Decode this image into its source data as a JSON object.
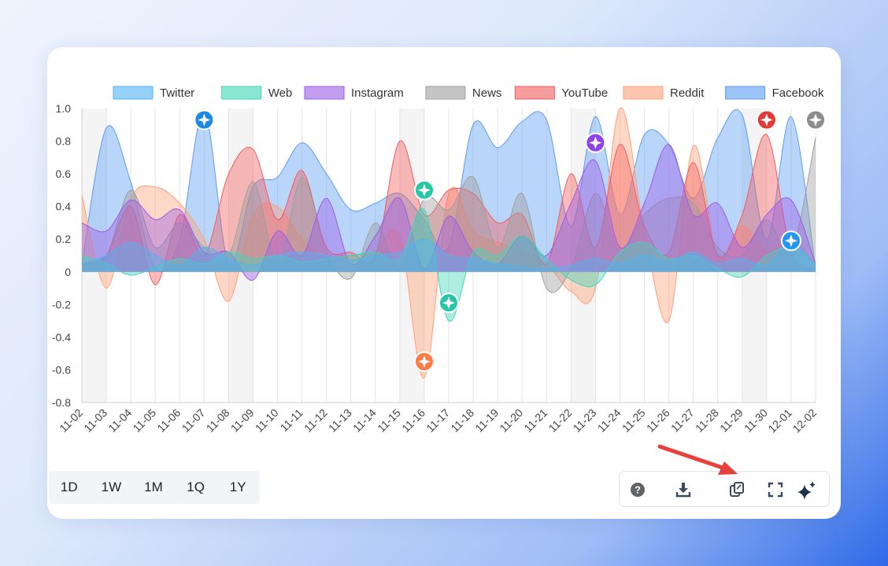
{
  "range_buttons": [
    "1D",
    "1W",
    "1M",
    "1Q",
    "1Y"
  ],
  "toolbar": {
    "help_icon": "help-icon",
    "download_icon": "download-icon",
    "copy_icon": "copy-icon",
    "fullscreen_icon": "fullscreen-icon",
    "ai_icon": "sparkles-icon"
  },
  "annotation_arrow_color": "#e8403a",
  "chart_data": {
    "type": "area",
    "categories": [
      "11-02",
      "11-03",
      "11-04",
      "11-05",
      "11-06",
      "11-07",
      "11-08",
      "11-09",
      "11-10",
      "11-11",
      "11-12",
      "11-13",
      "11-14",
      "11-15",
      "11-16",
      "11-17",
      "11-18",
      "11-19",
      "11-20",
      "11-21",
      "11-22",
      "11-23",
      "11-24",
      "11-25",
      "11-26",
      "11-27",
      "11-28",
      "11-29",
      "11-30",
      "12-01",
      "12-02"
    ],
    "ylim": [
      -0.8,
      1.0
    ],
    "yticks": [
      1.0,
      0.8,
      0.6,
      0.4,
      0.2,
      0,
      -0.2,
      -0.4,
      -0.6,
      -0.8
    ],
    "grid": true,
    "legend_position": "top",
    "weekend_bands": [
      [
        "11-02",
        "11-03"
      ],
      [
        "11-08",
        "11-09"
      ],
      [
        "11-15",
        "11-16"
      ],
      [
        "11-22",
        "11-23"
      ],
      [
        "11-29",
        "11-30"
      ]
    ],
    "series": [
      {
        "name": "Twitter",
        "color": "#4fb3f6",
        "values": [
          0.05,
          0.1,
          0.18,
          0.1,
          0.04,
          0.15,
          0.08,
          0.04,
          0.1,
          0.12,
          0.1,
          0.07,
          0.1,
          0.12,
          0.2,
          0.1,
          0.08,
          0.05,
          0.03,
          0.02,
          0.04,
          0.08,
          0.05,
          0.1,
          0.06,
          0.12,
          0.05,
          0.08,
          0.04,
          0.18,
          0.04
        ]
      },
      {
        "name": "Web",
        "color": "#3fd6b8",
        "values": [
          0.1,
          0.05,
          -0.02,
          0.03,
          0.08,
          0.05,
          0.12,
          0.08,
          0.1,
          0.06,
          0.08,
          0.1,
          0.12,
          0.08,
          0.38,
          -0.3,
          0.12,
          0.1,
          0.22,
          0.08,
          -0.05,
          -0.08,
          0.12,
          0.18,
          0.08,
          0.1,
          0.02,
          -0.03,
          0.1,
          0.15,
          0.05
        ]
      },
      {
        "name": "Instagram",
        "color": "#9b5de5",
        "values": [
          0.3,
          0.25,
          0.44,
          0.32,
          0.38,
          0.12,
          0.12,
          -0.05,
          0.25,
          0.1,
          0.45,
          0.05,
          0.22,
          0.45,
          0.02,
          0.34,
          0.12,
          0.05,
          0.22,
          0.1,
          0.42,
          0.68,
          0.15,
          0.42,
          0.78,
          0.35,
          0.42,
          0.15,
          0.35,
          0.44,
          0.05
        ]
      },
      {
        "name": "News",
        "color": "#9e9e9e",
        "values": [
          0.05,
          0.1,
          0.5,
          0.15,
          0.3,
          0.15,
          0.1,
          0.55,
          0.05,
          0.58,
          0.12,
          -0.04,
          0.3,
          0.02,
          0.45,
          0.38,
          0.58,
          0.15,
          0.48,
          -0.1,
          0.02,
          0.48,
          0.12,
          0.35,
          0.45,
          0.42,
          0.15,
          0.1,
          0.32,
          0.12,
          0.82
        ]
      },
      {
        "name": "YouTube",
        "color": "#f25c5c",
        "values": [
          0.05,
          0.1,
          0.4,
          -0.08,
          0.35,
          0.1,
          0.6,
          0.75,
          0.32,
          0.62,
          0.15,
          0.12,
          0.1,
          0.8,
          0.35,
          0.5,
          0.48,
          0.3,
          0.35,
          0.05,
          0.6,
          0.15,
          0.78,
          0.28,
          0.12,
          0.67,
          0.1,
          0.35,
          0.84,
          0.12,
          0.02
        ]
      },
      {
        "name": "Reddit",
        "color": "#ffa07a",
        "values": [
          0.47,
          -0.1,
          0.45,
          0.52,
          0.42,
          0.2,
          -0.18,
          0.35,
          0.4,
          0.2,
          0.08,
          0.1,
          0.12,
          0.22,
          -0.65,
          0.48,
          0.25,
          0.18,
          0.12,
          0.05,
          -0.12,
          -0.1,
          1.0,
          0.25,
          -0.3,
          0.77,
          0.1,
          0.28,
          0.12,
          0.2,
          0.05
        ]
      },
      {
        "name": "Facebook",
        "color": "#5a9cf2",
        "values": [
          0.05,
          0.88,
          0.55,
          0.02,
          0.2,
          0.98,
          0.05,
          0.52,
          0.58,
          0.79,
          0.6,
          0.38,
          0.42,
          0.48,
          0.32,
          0.15,
          0.9,
          0.76,
          0.92,
          0.93,
          0.28,
          0.95,
          0.35,
          0.84,
          0.78,
          0.45,
          0.82,
          0.96,
          0.2,
          0.95,
          0.02
        ]
      }
    ],
    "markers": [
      {
        "series": "Facebook",
        "x": "11-07",
        "y": 0.93,
        "color": "#1e88e5"
      },
      {
        "series": "Web",
        "x": "11-16",
        "y": 0.5,
        "color": "#26c6a6"
      },
      {
        "series": "Web",
        "x": "11-17",
        "y": -0.19,
        "color": "#26c6a6"
      },
      {
        "series": "Reddit",
        "x": "11-16",
        "y": -0.55,
        "color": "#ff7a45"
      },
      {
        "series": "Instagram",
        "x": "11-23",
        "y": 0.79,
        "color": "#8e44e8"
      },
      {
        "series": "YouTube",
        "x": "11-30",
        "y": 0.93,
        "color": "#e53935"
      },
      {
        "series": "News",
        "x": "12-02",
        "y": 0.93,
        "color": "#8d8d8d"
      },
      {
        "series": "Twitter",
        "x": "12-01",
        "y": 0.19,
        "color": "#2196f3"
      }
    ]
  }
}
